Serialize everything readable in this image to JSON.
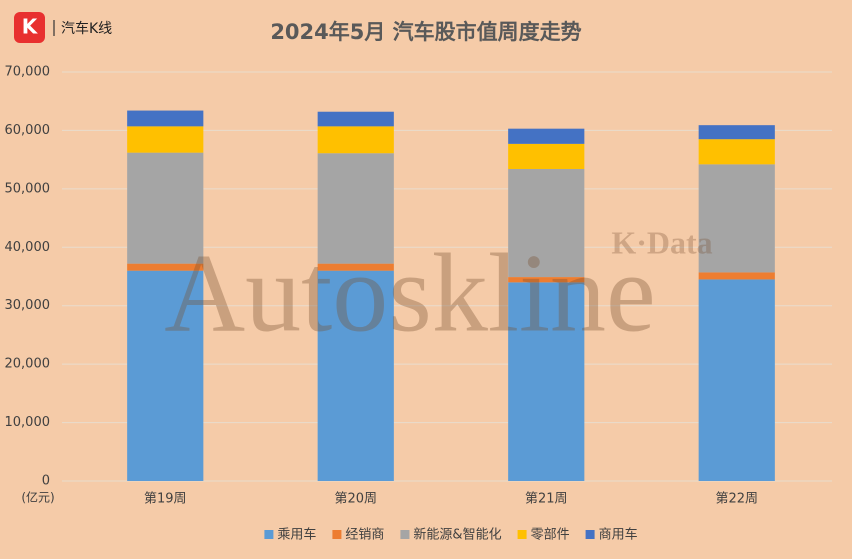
{
  "logo": {
    "icon": "K",
    "text": "汽车K线"
  },
  "watermark": {
    "main": "Autoskline",
    "sub": "K·Data"
  },
  "chart_data": {
    "type": "stacked-bar",
    "title": "2024年5月 汽车股市值周度走势",
    "y_unit": "(亿元)",
    "categories": [
      "第19周",
      "第20周",
      "第21周",
      "第22周"
    ],
    "series": [
      {
        "name": "乘用车",
        "color": "#5b9bd5",
        "values": [
          36000,
          36000,
          34000,
          34500
        ]
      },
      {
        "name": "经销商",
        "color": "#ed7d31",
        "values": [
          1200,
          1200,
          900,
          1200
        ]
      },
      {
        "name": "新能源&智能化",
        "color": "#a5a5a5",
        "values": [
          19000,
          18900,
          18500,
          18500
        ]
      },
      {
        "name": "零部件",
        "color": "#ffc000",
        "values": [
          4500,
          4600,
          4300,
          4300
        ]
      },
      {
        "name": "商用车",
        "color": "#4472c4",
        "values": [
          2700,
          2500,
          2600,
          2400
        ]
      }
    ],
    "ylim": [
      0,
      70000
    ],
    "yticks": [
      0,
      {
        "value": 10000,
        "label": "10,000"
      },
      {
        "value": 20000,
        "label": "20,000"
      },
      {
        "value": 30000,
        "label": "30,000"
      },
      {
        "value": 40000,
        "label": "40,000"
      },
      {
        "value": 50000,
        "label": "50,000"
      },
      {
        "value": 60000,
        "label": "60,000"
      },
      {
        "value": 70000,
        "label": "70,000"
      }
    ],
    "grid": true,
    "legend": "bottom"
  }
}
